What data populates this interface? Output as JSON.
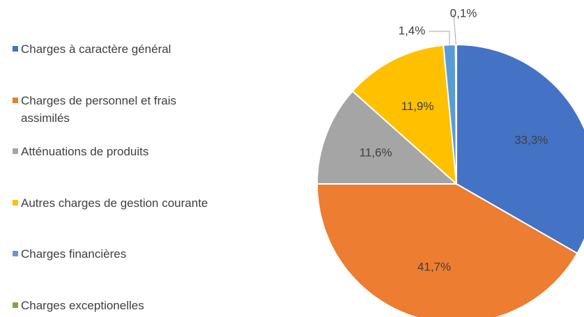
{
  "chart_data": {
    "type": "pie",
    "categories": [
      "Charges à caractère général",
      "Charges de personnel et frais assimilés",
      "Atténuations de produits",
      "Autres charges de gestion courante",
      "Charges financières",
      "Charges exceptionelles"
    ],
    "values": [
      33.3,
      41.7,
      11.6,
      11.9,
      1.4,
      0.1
    ],
    "value_labels": [
      "33,3%",
      "41,7%",
      "11,6%",
      "11,9%",
      "1,4%",
      "0,1%"
    ],
    "colors": [
      "#4472c4",
      "#ed7d31",
      "#a5a5a5",
      "#ffc000",
      "#5b9bd5",
      "#70ad47"
    ],
    "legend": "left"
  }
}
